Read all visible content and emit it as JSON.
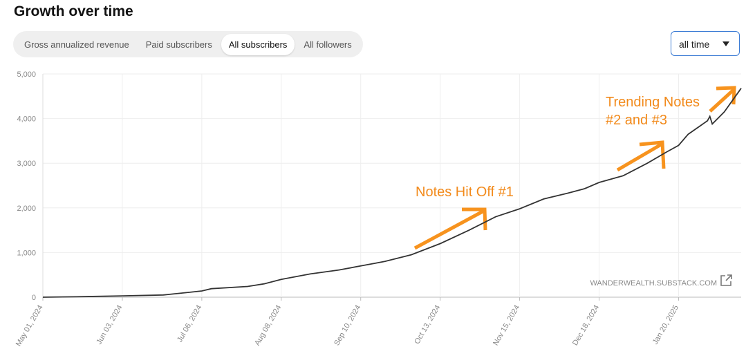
{
  "header": {
    "title": "Growth over time"
  },
  "tabs": {
    "items": [
      "Gross annualized revenue",
      "Paid subscribers",
      "All subscribers",
      "All followers"
    ],
    "active": 2
  },
  "dropdown": {
    "label": "all time"
  },
  "watermark": "WANDERWEALTH.SUBSTACK.COM",
  "chart_data": {
    "type": "line",
    "color": "#333333",
    "grid": true,
    "x": [
      "2024-05-01",
      "2024-05-15",
      "2024-06-03",
      "2024-06-20",
      "2024-07-01",
      "2024-07-06",
      "2024-07-10",
      "2024-07-25",
      "2024-08-01",
      "2024-08-08",
      "2024-08-20",
      "2024-09-01",
      "2024-09-10",
      "2024-09-20",
      "2024-10-01",
      "2024-10-13",
      "2024-10-25",
      "2024-11-05",
      "2024-11-15",
      "2024-11-25",
      "2024-12-05",
      "2024-12-12",
      "2024-12-18",
      "2024-12-28",
      "2025-01-07",
      "2025-01-15",
      "2025-01-20",
      "2025-01-24",
      "2025-02-01",
      "2025-02-02",
      "2025-02-03",
      "2025-02-08",
      "2025-02-15"
    ],
    "values": [
      0,
      10,
      30,
      50,
      110,
      140,
      190,
      240,
      300,
      400,
      520,
      610,
      700,
      800,
      950,
      1200,
      1500,
      1800,
      1980,
      2200,
      2330,
      2430,
      2570,
      2720,
      3000,
      3250,
      3400,
      3650,
      3950,
      4050,
      3880,
      4150,
      4680
    ],
    "xlim": [
      "2024-05-01",
      "2025-02-15"
    ],
    "xticks": [
      {
        "value": "2024-05-01",
        "label": "May 01, 2024"
      },
      {
        "value": "2024-06-03",
        "label": "Jun 03, 2024"
      },
      {
        "value": "2024-07-06",
        "label": "Jul 06, 2024"
      },
      {
        "value": "2024-08-08",
        "label": "Aug 08, 2024"
      },
      {
        "value": "2024-09-10",
        "label": "Sep 10, 2024"
      },
      {
        "value": "2024-10-13",
        "label": "Oct 13, 2024"
      },
      {
        "value": "2024-11-15",
        "label": "Nov 15, 2024"
      },
      {
        "value": "2024-12-18",
        "label": "Dec 18, 2024"
      },
      {
        "value": "2025-01-20",
        "label": "Jan 20, 2025"
      }
    ],
    "ylim": [
      0,
      5000
    ],
    "yticks": [
      0,
      {
        "value": 1000,
        "label": "1,000"
      },
      {
        "value": 2000,
        "label": "2,000"
      },
      {
        "value": 3000,
        "label": "3,000"
      },
      {
        "value": 4000,
        "label": "4,000"
      },
      {
        "value": 5000,
        "label": "5,000"
      }
    ],
    "annotations": [
      {
        "lines": [
          "Notes Hit Off #1"
        ]
      },
      {
        "lines": [
          "Trending Notes",
          "#2 and #3"
        ]
      }
    ]
  }
}
